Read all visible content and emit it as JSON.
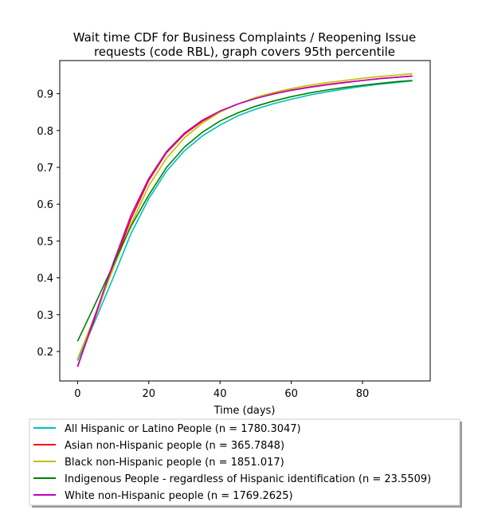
{
  "chart_data": {
    "type": "line",
    "title": "Wait time CDF for Business Complaints / Reopening Issue\nrequests (code RBL), graph covers 95th percentile",
    "xlabel": "Time (days)",
    "ylabel": "",
    "xlim": [
      -5,
      99
    ],
    "ylim": [
      0.12,
      0.99
    ],
    "xticks": [
      0,
      20,
      40,
      60,
      80
    ],
    "yticks": [
      0.2,
      0.3,
      0.4,
      0.5,
      0.6,
      0.7,
      0.8,
      0.9
    ],
    "grid": false,
    "legend_position": "bottom",
    "series": [
      {
        "name": "All Hispanic or Latino People (n = 1780.3047)",
        "color": "#00bfbf",
        "x": [
          0,
          5,
          10,
          15,
          20,
          25,
          30,
          35,
          40,
          45,
          50,
          55,
          60,
          65,
          70,
          75,
          80,
          85,
          90,
          94
        ],
        "y": [
          0.175,
          0.285,
          0.4,
          0.52,
          0.615,
          0.69,
          0.745,
          0.785,
          0.815,
          0.84,
          0.858,
          0.873,
          0.885,
          0.896,
          0.905,
          0.913,
          0.92,
          0.926,
          0.931,
          0.935
        ]
      },
      {
        "name": "Asian non-Hispanic people (n = 365.7848)",
        "color": "#ff0000",
        "x": [
          0,
          5,
          10,
          15,
          20,
          25,
          30,
          35,
          40,
          45,
          50,
          55,
          60,
          65,
          70,
          75,
          80,
          85,
          90,
          94
        ],
        "y": [
          0.16,
          0.295,
          0.43,
          0.56,
          0.665,
          0.74,
          0.79,
          0.825,
          0.852,
          0.872,
          0.888,
          0.9,
          0.91,
          0.918,
          0.925,
          0.931,
          0.936,
          0.941,
          0.945,
          0.948
        ]
      },
      {
        "name": "Black non-Hispanic people (n = 1851.017)",
        "color": "#bfbf00",
        "x": [
          0,
          5,
          10,
          15,
          20,
          25,
          30,
          35,
          40,
          45,
          50,
          55,
          60,
          65,
          70,
          75,
          80,
          85,
          90,
          94
        ],
        "y": [
          0.18,
          0.3,
          0.425,
          0.545,
          0.65,
          0.725,
          0.78,
          0.82,
          0.85,
          0.872,
          0.89,
          0.903,
          0.914,
          0.923,
          0.93,
          0.936,
          0.942,
          0.947,
          0.951,
          0.954
        ]
      },
      {
        "name": "Indigenous People - regardless of Hispanic identification (n = 23.5509)",
        "color": "#008000",
        "x": [
          0,
          5,
          10,
          15,
          20,
          25,
          30,
          35,
          40,
          45,
          50,
          55,
          60,
          65,
          70,
          75,
          80,
          85,
          90,
          94
        ],
        "y": [
          0.228,
          0.33,
          0.435,
          0.54,
          0.625,
          0.7,
          0.755,
          0.795,
          0.826,
          0.848,
          0.866,
          0.88,
          0.892,
          0.902,
          0.91,
          0.917,
          0.923,
          0.928,
          0.933,
          0.936
        ]
      },
      {
        "name": "White non-Hispanic people (n = 1769.2625)",
        "color": "#bf00bf",
        "x": [
          0,
          5,
          10,
          15,
          20,
          25,
          30,
          35,
          40,
          45,
          50,
          55,
          60,
          65,
          70,
          75,
          80,
          85,
          90,
          94
        ],
        "y": [
          0.158,
          0.3,
          0.44,
          0.57,
          0.67,
          0.743,
          0.793,
          0.828,
          0.853,
          0.872,
          0.887,
          0.899,
          0.909,
          0.917,
          0.924,
          0.93,
          0.936,
          0.941,
          0.945,
          0.948
        ]
      }
    ]
  }
}
